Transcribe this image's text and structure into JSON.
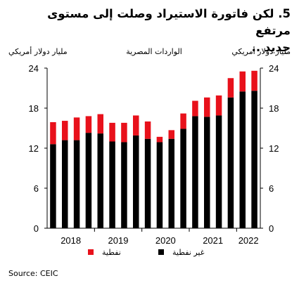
{
  "chart_data": {
    "type": "bar",
    "stacked": true,
    "title_lines": [
      "5. لكن فاتورة الاستيراد وصلت إلى مستوى مرتفع",
      "جديد .."
    ],
    "subtitle": "الواردات المصرية",
    "ylabel_left": "مليار دولار أمريكي",
    "ylabel_right": "مليار دولار أمريكي",
    "ylim": [
      0,
      24
    ],
    "yticks": [
      "0",
      "6",
      "12",
      "18",
      "24"
    ],
    "xtick_labels": [
      "2018",
      "2019",
      "2020",
      "2021",
      "2022"
    ],
    "grid": false,
    "legend_position": "bottom",
    "categories": [
      "2018 Q1",
      "2018 Q2",
      "2018 Q3",
      "2018 Q4",
      "2019 Q1",
      "2019 Q2",
      "2019 Q3",
      "2019 Q4",
      "2020 Q1",
      "2020 Q2",
      "2020 Q3",
      "2020 Q4",
      "2021 Q1",
      "2021 Q2",
      "2021 Q3",
      "2021 Q4",
      "2022 Q1",
      "2022 Q2"
    ],
    "series": [
      {
        "name": "غير نفطية",
        "color": "#000000",
        "values": [
          12.6,
          13.2,
          13.2,
          14.3,
          14.2,
          13.0,
          12.9,
          13.9,
          13.4,
          12.9,
          13.4,
          14.9,
          16.8,
          16.7,
          16.9,
          19.6,
          20.5,
          20.6
        ]
      },
      {
        "name": "نفطية",
        "color": "#e8111b",
        "values": [
          3.3,
          2.9,
          3.4,
          2.5,
          2.9,
          2.8,
          2.9,
          3.0,
          2.6,
          0.8,
          1.3,
          2.3,
          2.3,
          2.9,
          3.0,
          2.9,
          3.0,
          3.0
        ]
      }
    ]
  },
  "source": "Source: CEIC"
}
